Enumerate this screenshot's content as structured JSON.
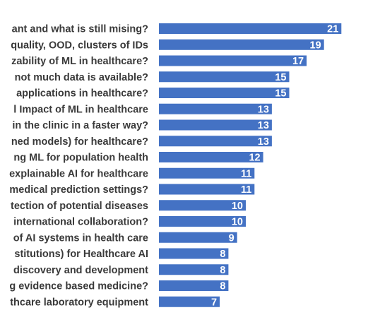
{
  "chart_data": {
    "type": "bar",
    "orientation": "horizontal",
    "bar_color": "#4472C4",
    "label_color": "#3a3a3a",
    "value_label_color": "#ffffff",
    "grid": false,
    "legend": "none",
    "xlim": [
      0,
      22
    ],
    "categories": [
      "ant and what is still mising?",
      "quality, OOD, clusters of IDs",
      "zability of ML in healthcare?",
      "not much data is available?",
      "applications in healthcare?",
      "l Impact of ML in healthcare",
      "in the clinic in a faster way?",
      "ned models) for healthcare?",
      "ng ML for population health",
      "explainable AI for healthcare",
      "medical prediction settings?",
      "tection of potential diseases",
      "international collaboration?",
      "of AI systems in health care",
      "stitutions) for Healthcare AI",
      "discovery and development",
      "g evidence based medicine?",
      "thcare laboratory equipment"
    ],
    "values": [
      21,
      19,
      17,
      15,
      15,
      13,
      13,
      13,
      12,
      11,
      11,
      10,
      10,
      9,
      8,
      8,
      8,
      7
    ]
  }
}
